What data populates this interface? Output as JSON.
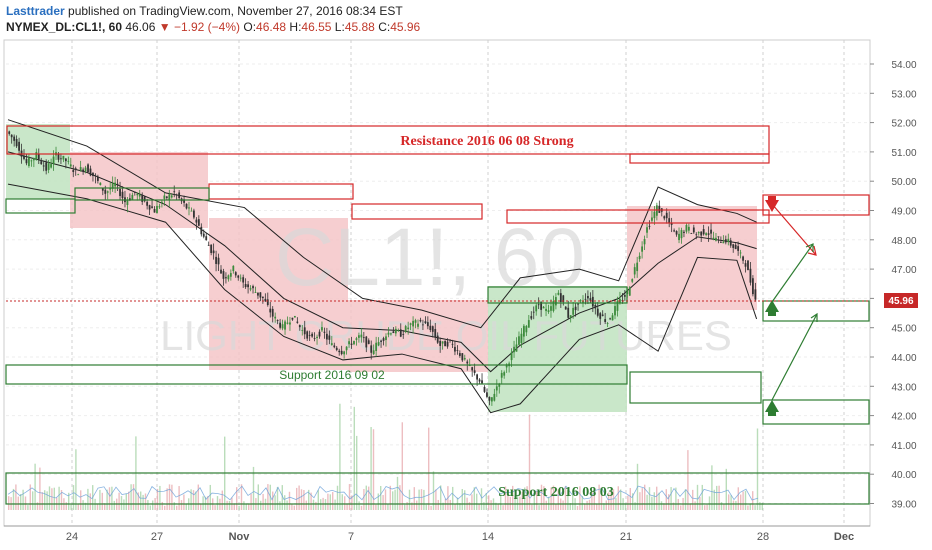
{
  "header": {
    "user": "Lasttrader",
    "published": "published on TradingView.com, November 27, 2016 08:34 EST",
    "symbol": "NYMEX_DL:CL1!, 60",
    "last": "46.06",
    "change_arrow": "▼",
    "change": "−1.92 (−4%)",
    "o_label": "O:",
    "o": "46.48",
    "h_label": "H:",
    "h": "46.55",
    "l_label": "L:",
    "l": "45.88",
    "c_label": "C:",
    "c": "45.96"
  },
  "watermark": {
    "symbol": "CL1!, 60",
    "name": "LIGHT CRUDE OIL FUTURES"
  },
  "price_label": "45.96",
  "annotations": {
    "resistance": "Resistance 2016 06 08 Strong",
    "support_sep": "Support 2016 09 02",
    "support_aug": "Support 2016 08 03"
  },
  "colors": {
    "candle_up": "#3c8a3c",
    "candle_down": "#333333",
    "resistance": "#d62728",
    "support": "#2e7d32",
    "pink_zone": "#f4c2c4",
    "green_zone": "#bfe3bf",
    "price_tag": "#c62828"
  },
  "chart_data": {
    "type": "candlestick",
    "y_axis_ticks": [
      "54.00",
      "53.00",
      "52.00",
      "51.00",
      "50.00",
      "49.00",
      "48.00",
      "47.00",
      "46.00",
      "45.00",
      "44.00",
      "43.00",
      "42.00",
      "41.00",
      "40.00",
      "39.00"
    ],
    "x_axis_ticks": [
      "24",
      "27",
      "Nov",
      "7",
      "14",
      "21",
      "28",
      "Dec"
    ],
    "ylim": [
      38.5,
      55
    ],
    "close_path": [
      [
        0,
        51.7
      ],
      [
        1,
        51.3
      ],
      [
        2,
        50.6
      ],
      [
        3,
        50.9
      ],
      [
        4,
        50.4
      ],
      [
        5,
        50.9
      ],
      [
        6,
        50.7
      ],
      [
        7,
        50.3
      ],
      [
        8,
        50.5
      ],
      [
        9,
        50.1
      ],
      [
        10,
        49.6
      ],
      [
        11,
        49.9
      ],
      [
        12,
        49.3
      ],
      [
        13,
        49.6
      ],
      [
        14,
        49.3
      ],
      [
        15,
        49.0
      ],
      [
        16,
        49.4
      ],
      [
        17,
        49.6
      ],
      [
        18,
        49.2
      ],
      [
        19,
        48.8
      ],
      [
        20,
        48.1
      ],
      [
        21,
        47.5
      ],
      [
        22,
        46.7
      ],
      [
        23,
        47.0
      ],
      [
        24,
        46.5
      ],
      [
        25,
        46.3
      ],
      [
        26,
        46.0
      ],
      [
        27,
        45.4
      ],
      [
        28,
        45.0
      ],
      [
        29,
        45.4
      ],
      [
        30,
        44.9
      ],
      [
        31,
        44.6
      ],
      [
        32,
        44.9
      ],
      [
        33,
        44.4
      ],
      [
        34,
        44.2
      ],
      [
        35,
        44.5
      ],
      [
        36,
        44.7
      ],
      [
        37,
        44.2
      ],
      [
        38,
        44.6
      ],
      [
        39,
        44.9
      ],
      [
        40,
        44.8
      ],
      [
        41,
        45.1
      ],
      [
        42,
        45.2
      ],
      [
        43,
        45.0
      ],
      [
        44,
        44.4
      ],
      [
        45,
        44.5
      ],
      [
        46,
        44.1
      ],
      [
        47,
        43.6
      ],
      [
        48,
        43.2
      ],
      [
        49,
        42.4
      ],
      [
        50,
        43.2
      ],
      [
        51,
        43.9
      ],
      [
        52,
        44.6
      ],
      [
        53,
        45.3
      ],
      [
        54,
        45.8
      ],
      [
        55,
        45.5
      ],
      [
        56,
        46.2
      ],
      [
        57,
        45.4
      ],
      [
        58,
        45.8
      ],
      [
        59,
        46.1
      ],
      [
        60,
        45.5
      ],
      [
        61,
        45.2
      ],
      [
        62,
        45.8
      ],
      [
        63,
        46.2
      ],
      [
        64,
        47.3
      ],
      [
        65,
        48.4
      ],
      [
        66,
        49.1
      ],
      [
        67,
        48.7
      ],
      [
        68,
        48.1
      ],
      [
        69,
        48.4
      ],
      [
        70,
        48.2
      ],
      [
        71,
        48.3
      ],
      [
        72,
        48.0
      ],
      [
        73,
        48.0
      ],
      [
        74,
        47.7
      ],
      [
        75,
        47.2
      ],
      [
        76,
        45.96
      ]
    ],
    "upper_band": [
      [
        0,
        52.1
      ],
      [
        8,
        51.2
      ],
      [
        16,
        49.6
      ],
      [
        24,
        49.1
      ],
      [
        30,
        47.4
      ],
      [
        36,
        46.0
      ],
      [
        42,
        45.6
      ],
      [
        48,
        45.0
      ],
      [
        52,
        46.7
      ],
      [
        58,
        47.0
      ],
      [
        62,
        46.6
      ],
      [
        66,
        49.8
      ],
      [
        70,
        49.2
      ],
      [
        74,
        48.9
      ],
      [
        76,
        48.6
      ]
    ],
    "lower_band": [
      [
        0,
        49.9
      ],
      [
        8,
        49.4
      ],
      [
        16,
        48.6
      ],
      [
        22,
        46.3
      ],
      [
        28,
        44.7
      ],
      [
        34,
        43.9
      ],
      [
        40,
        44.1
      ],
      [
        46,
        43.6
      ],
      [
        49,
        42.1
      ],
      [
        52,
        42.4
      ],
      [
        58,
        44.6
      ],
      [
        62,
        45.1
      ],
      [
        66,
        44.2
      ],
      [
        70,
        47.4
      ],
      [
        74,
        47.3
      ],
      [
        76,
        45.3
      ]
    ],
    "basis": [
      [
        0,
        51.0
      ],
      [
        8,
        50.3
      ],
      [
        16,
        49.2
      ],
      [
        22,
        47.8
      ],
      [
        28,
        46.0
      ],
      [
        34,
        45.0
      ],
      [
        40,
        44.9
      ],
      [
        46,
        44.5
      ],
      [
        49,
        43.5
      ],
      [
        52,
        44.4
      ],
      [
        58,
        45.5
      ],
      [
        62,
        46.0
      ],
      [
        66,
        47.2
      ],
      [
        70,
        48.1
      ],
      [
        74,
        47.9
      ],
      [
        76,
        47.7
      ]
    ]
  }
}
